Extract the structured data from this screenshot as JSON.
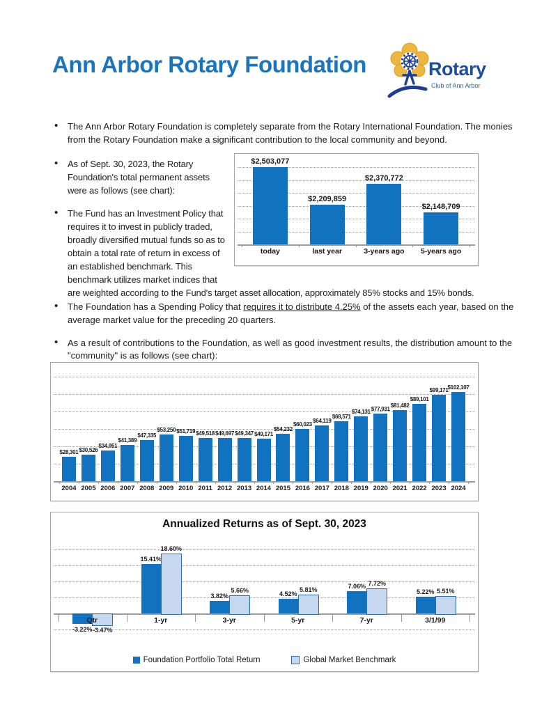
{
  "page": {
    "title": "Ann Arbor Rotary Foundation"
  },
  "logo": {
    "brand": "Rotary",
    "subtitle": "Club of Ann Arbor"
  },
  "bullets": [
    {
      "text": "The Ann Arbor Rotary Foundation is completely separate from the Rotary International Foundation.  The monies from the Rotary Foundation make a significant contribution to the local community and beyond."
    },
    {
      "text": "As of Sept. 30, 2023, the Rotary Foundation's total permanent assets were as follows (see chart):"
    },
    {
      "text": "The Fund has an Investment Policy that requires it to invest in publicly traded, broadly diversified mutual funds so as to obtain a total rate of return in excess of an established benchmark.  This benchmark utilizes market indices that are weighted according to the Fund's target asset allocation, approximately 85% stocks and 15% bonds."
    },
    {
      "pre": "The Foundation has a Spending Policy that ",
      "underline": "requires it to distribute 4.25%",
      "post": " of the assets each year, based on the average market value for the preceding 20 quarters."
    },
    {
      "text": "As a result of contributions to the Foundation, as well as good investment results, the distribution amount to the \"community\" is as follows (see chart):"
    }
  ],
  "colors": {
    "accent": "#1b74be",
    "bar_blue": "#1173c0",
    "benchmark_fill": "#c6d8f0",
    "benchmark_border": "#2e6ca8",
    "logo_gold": "#edb63f",
    "logo_blue": "#1c3f94"
  },
  "chart_data": [
    {
      "type": "bar",
      "title": "",
      "categories": [
        "today",
        "last year",
        "3-years ago",
        "5-years ago"
      ],
      "values": [
        2503077,
        2209859,
        2370772,
        2148709
      ],
      "labels": [
        "$2,503,077",
        "$2,209,859",
        "$2,370,772",
        "$2,148,709"
      ],
      "ylim": [
        1900000,
        2550000
      ],
      "grid_step": 100000,
      "grid": "dotted"
    },
    {
      "type": "bar",
      "title": "",
      "categories": [
        "2004",
        "2005",
        "2006",
        "2007",
        "2008",
        "2009",
        "2010",
        "2011",
        "2012",
        "2013",
        "2014",
        "2015",
        "2016",
        "2017",
        "2018",
        "2019",
        "2020",
        "2021",
        "2022",
        "2023",
        "2024"
      ],
      "values": [
        28301,
        30526,
        34951,
        41389,
        47335,
        53250,
        51719,
        49518,
        49697,
        49347,
        49171,
        54232,
        60023,
        64119,
        68571,
        74131,
        77931,
        81482,
        89101,
        99171,
        102107
      ],
      "labels": [
        "$28,301",
        "$30,526",
        "$34,951",
        "$41,389",
        "$47,335",
        "$53,250",
        "$51,719",
        "$49,518",
        "$49,697",
        "$49,347",
        "$49,171",
        "$54,232",
        "$60,023",
        "$64,119",
        "$68,571",
        "$74,131",
        "$77,931",
        "$81,482",
        "$89,101",
        "$99,171",
        "$102,107"
      ],
      "ylim": [
        0,
        120000
      ],
      "grid_step": 20000,
      "grid": "dotted"
    },
    {
      "type": "grouped-bar",
      "title": "Annualized Returns as of Sept. 30, 2023",
      "categories": [
        "Qtr",
        "1-yr",
        "3-yr",
        "5-yr",
        "7-yr",
        "3/1/99"
      ],
      "series": [
        {
          "name": "Foundation Portfolio Total Return",
          "values": [
            -3.22,
            15.41,
            3.82,
            4.52,
            7.06,
            5.22
          ],
          "labels": [
            "-3.22%",
            "15.41%",
            "3.82%",
            "4.52%",
            "7.06%",
            "5.22%"
          ]
        },
        {
          "name": "Global Market Benchmark",
          "values": [
            -3.47,
            18.6,
            5.66,
            5.81,
            7.72,
            5.51
          ],
          "labels": [
            "-3.47%",
            "18.60%",
            "5.66%",
            "5.81%",
            "7.72%",
            "5.51%"
          ]
        }
      ],
      "ylim": [
        -5,
        20
      ],
      "grid_step": 5,
      "grid": "dotted",
      "legend_position": "bottom"
    }
  ]
}
